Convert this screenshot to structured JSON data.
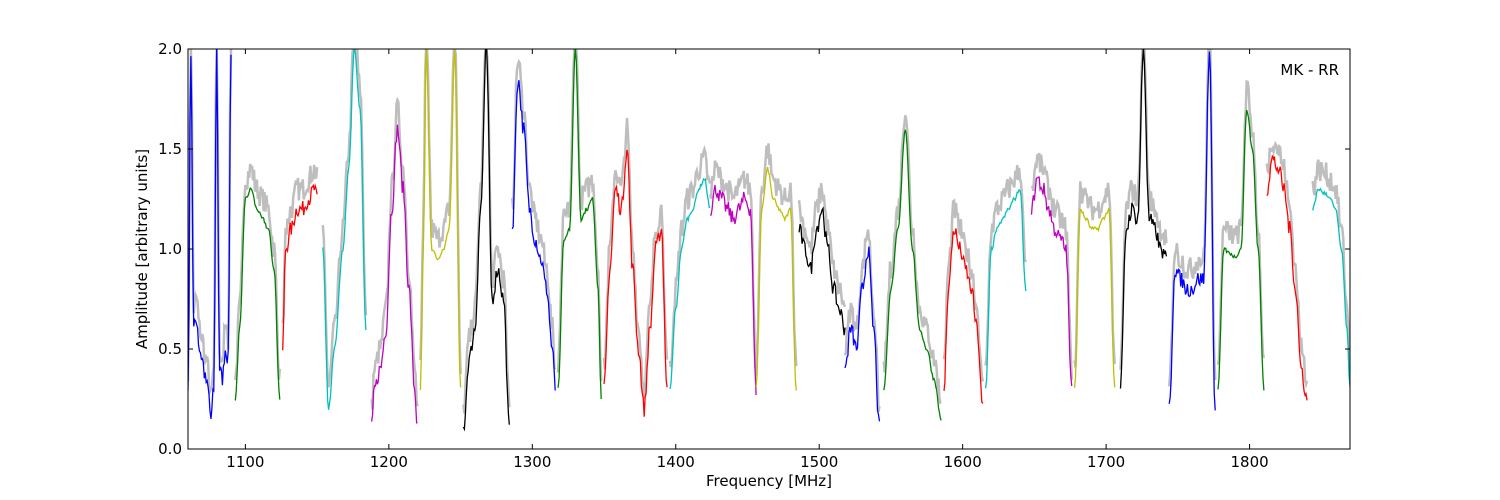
{
  "chart_data": {
    "type": "line",
    "title": "",
    "annotation": "MK - RR",
    "xlabel": "Frequency [MHz]",
    "ylabel": "Amplitude [arbitrary units]",
    "xlim": [
      1060,
      1870
    ],
    "ylim": [
      0.0,
      2.0
    ],
    "grid": false,
    "x_ticks": [
      1100,
      1200,
      1300,
      1400,
      1500,
      1600,
      1700,
      1800
    ],
    "y_ticks": [
      "0.0",
      "0.5",
      "1.0",
      "1.5",
      "2.0"
    ],
    "background_color": "#bebebe",
    "series": [
      {
        "color": "#0000ff",
        "x": [
          1060,
          1062,
          1064,
          1066,
          1068,
          1070,
          1072,
          1074,
          1076,
          1078,
          1080,
          1082,
          1084,
          1086,
          1088,
          1090
        ],
        "y": [
          0.3,
          2.0,
          0.6,
          0.65,
          0.5,
          0.45,
          0.35,
          0.3,
          0.15,
          0.3,
          2.0,
          0.4,
          0.35,
          0.5,
          0.45,
          2.0
        ]
      },
      {
        "color": "#008000",
        "x": [
          1093,
          1096,
          1100,
          1104,
          1108,
          1112,
          1116,
          1120,
          1124
        ],
        "y": [
          0.25,
          0.6,
          1.25,
          1.3,
          1.2,
          1.15,
          1.1,
          0.9,
          0.25
        ]
      },
      {
        "color": "#ff0000",
        "x": [
          1126,
          1128,
          1132,
          1136,
          1140,
          1144,
          1148,
          1150
        ],
        "y": [
          0.5,
          1.0,
          1.1,
          1.2,
          1.2,
          1.25,
          1.3,
          1.25
        ]
      },
      {
        "color": "#00bfbf",
        "x": [
          1154,
          1158,
          1162,
          1168,
          1172,
          1176,
          1180,
          1184
        ],
        "y": [
          1.0,
          0.2,
          0.5,
          1.0,
          1.4,
          2.0,
          1.7,
          0.6
        ]
      },
      {
        "color": "#bf00bf",
        "x": [
          1188,
          1190,
          1194,
          1198,
          1202,
          1206,
          1210,
          1214,
          1218,
          1220
        ],
        "y": [
          0.1,
          0.3,
          0.4,
          0.6,
          1.2,
          1.6,
          1.3,
          0.8,
          0.3,
          0.1
        ]
      },
      {
        "color": "#bfbf00",
        "x": [
          1222,
          1224,
          1226,
          1230,
          1234,
          1238,
          1242,
          1246,
          1250
        ],
        "y": [
          0.3,
          1.0,
          2.0,
          1.0,
          0.95,
          1.0,
          1.1,
          2.0,
          0.3
        ]
      },
      {
        "color": "#000000",
        "x": [
          1252,
          1256,
          1260,
          1264,
          1268,
          1272,
          1276,
          1280,
          1284
        ],
        "y": [
          0.1,
          0.45,
          0.6,
          1.2,
          2.0,
          0.75,
          0.9,
          0.75,
          0.1
        ]
      },
      {
        "color": "#0000ff",
        "x": [
          1286,
          1290,
          1294,
          1298,
          1302,
          1306,
          1310,
          1314,
          1316
        ],
        "y": [
          1.1,
          1.85,
          1.6,
          1.2,
          1.05,
          0.95,
          0.8,
          0.5,
          0.3
        ]
      },
      {
        "color": "#008000",
        "x": [
          1318,
          1322,
          1326,
          1330,
          1334,
          1338,
          1342,
          1346,
          1348
        ],
        "y": [
          0.3,
          1.05,
          1.1,
          2.0,
          1.15,
          1.2,
          1.25,
          0.8,
          0.25
        ]
      },
      {
        "color": "#ff0000",
        "x": [
          1350,
          1354,
          1358,
          1362,
          1366,
          1370,
          1374,
          1378,
          1382,
          1386,
          1390,
          1394
        ],
        "y": [
          0.3,
          0.9,
          1.3,
          1.2,
          1.5,
          0.9,
          0.5,
          0.2,
          0.6,
          1.0,
          1.1,
          0.3
        ]
      },
      {
        "color": "#00bfbf",
        "x": [
          1396,
          1400,
          1404,
          1408,
          1412,
          1416,
          1420,
          1424
        ],
        "y": [
          0.3,
          0.7,
          1.0,
          1.15,
          1.2,
          1.3,
          1.35,
          1.2
        ]
      },
      {
        "color": "#bf00bf",
        "x": [
          1424,
          1428,
          1432,
          1436,
          1440,
          1444,
          1448,
          1452,
          1456
        ],
        "y": [
          1.2,
          1.3,
          1.25,
          1.2,
          1.15,
          1.2,
          1.25,
          1.2,
          0.3
        ]
      },
      {
        "color": "#bfbf00",
        "x": [
          1456,
          1460,
          1464,
          1468,
          1472,
          1476,
          1480,
          1484
        ],
        "y": [
          0.3,
          1.2,
          1.4,
          1.25,
          1.2,
          1.15,
          1.2,
          0.3
        ]
      },
      {
        "color": "#000000",
        "x": [
          1486,
          1490,
          1494,
          1498,
          1502,
          1506,
          1510,
          1514,
          1518
        ],
        "y": [
          1.1,
          1.0,
          0.9,
          1.1,
          1.2,
          1.0,
          0.8,
          0.7,
          0.6
        ]
      },
      {
        "color": "#0000ff",
        "x": [
          1518,
          1522,
          1526,
          1530,
          1534,
          1538,
          1542
        ],
        "y": [
          0.4,
          0.6,
          0.5,
          0.8,
          1.0,
          0.6,
          0.1
        ]
      },
      {
        "color": "#008000",
        "x": [
          1545,
          1550,
          1555,
          1560,
          1565,
          1570,
          1575,
          1580,
          1585
        ],
        "y": [
          0.3,
          0.8,
          1.1,
          1.6,
          1.0,
          0.6,
          0.5,
          0.35,
          0.15
        ]
      },
      {
        "color": "#ff0000",
        "x": [
          1587,
          1590,
          1594,
          1598,
          1602,
          1606,
          1610,
          1614
        ],
        "y": [
          0.3,
          0.8,
          1.1,
          1.0,
          0.9,
          0.8,
          0.6,
          0.2
        ]
      },
      {
        "color": "#00bfbf",
        "x": [
          1616,
          1620,
          1624,
          1628,
          1632,
          1636,
          1640,
          1644
        ],
        "y": [
          0.3,
          1.0,
          1.1,
          1.15,
          1.2,
          1.25,
          1.3,
          0.8
        ]
      },
      {
        "color": "#bf00bf",
        "x": [
          1648,
          1652,
          1656,
          1660,
          1664,
          1668,
          1672,
          1676
        ],
        "y": [
          1.2,
          1.35,
          1.3,
          1.2,
          1.1,
          1.05,
          1.0,
          0.3
        ]
      },
      {
        "color": "#bfbf00",
        "x": [
          1678,
          1682,
          1686,
          1690,
          1694,
          1698,
          1702,
          1706
        ],
        "y": [
          0.3,
          1.2,
          1.15,
          1.1,
          1.1,
          1.15,
          1.2,
          0.3
        ]
      },
      {
        "color": "#000000",
        "x": [
          1710,
          1714,
          1718,
          1722,
          1726,
          1730,
          1734,
          1738,
          1742
        ],
        "y": [
          0.3,
          1.1,
          1.2,
          1.15,
          2.0,
          1.15,
          1.1,
          1.0,
          0.95
        ]
      },
      {
        "color": "#0000ff",
        "x": [
          1744,
          1748,
          1752,
          1756,
          1760,
          1764,
          1768,
          1772,
          1776
        ],
        "y": [
          0.2,
          0.9,
          0.85,
          0.8,
          0.8,
          0.85,
          0.85,
          2.0,
          0.2
        ]
      },
      {
        "color": "#008000",
        "x": [
          1778,
          1782,
          1786,
          1790,
          1794,
          1798,
          1802,
          1806,
          1810
        ],
        "y": [
          0.3,
          1.0,
          0.98,
          0.96,
          1.0,
          1.7,
          1.5,
          1.0,
          0.3
        ]
      },
      {
        "color": "#ff0000",
        "x": [
          1812,
          1816,
          1820,
          1824,
          1828,
          1832,
          1836,
          1840
        ],
        "y": [
          1.3,
          1.45,
          1.4,
          1.3,
          1.1,
          0.8,
          0.4,
          0.25
        ]
      },
      {
        "color": "#00bfbf",
        "x": [
          1844,
          1848,
          1852,
          1856,
          1860,
          1864,
          1868,
          1870
        ],
        "y": [
          1.2,
          1.3,
          1.28,
          1.25,
          1.2,
          1.0,
          0.6,
          0.3
        ]
      }
    ]
  }
}
